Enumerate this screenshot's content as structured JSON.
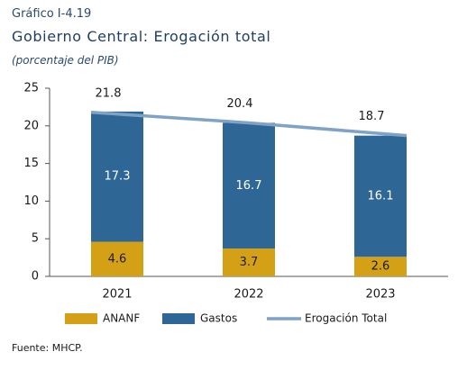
{
  "header": {
    "kicker": "Gráfico I-4.19",
    "title": "Gobierno Central: Erogación total",
    "subtitle": "(porcentaje del PIB)"
  },
  "source": "Fuente: MHCP.",
  "colors": {
    "ananf": "#D4A116",
    "gastos": "#2E6796",
    "total": "#7FA2C6",
    "axis": "#555555"
  },
  "chart_data": {
    "type": "bar",
    "stacked": true,
    "categories": [
      "2021",
      "2022",
      "2023"
    ],
    "series": [
      {
        "name": "ANANF",
        "values": [
          4.6,
          3.7,
          2.6
        ],
        "labels": [
          "4.6",
          "3.7",
          "2.6"
        ]
      },
      {
        "name": "Gastos",
        "values": [
          17.3,
          16.7,
          16.1
        ],
        "labels": [
          "17.3",
          "16.7",
          "16.1"
        ]
      }
    ],
    "line_series": {
      "name": "Erogación Total",
      "values": [
        21.8,
        20.4,
        18.7
      ],
      "labels": [
        "21.8",
        "20.4",
        "18.7"
      ]
    },
    "ylim": [
      0,
      25
    ],
    "yticks": [
      0,
      5,
      10,
      15,
      20,
      25
    ],
    "ytick_labels": [
      "0",
      "5",
      "10",
      "15",
      "20",
      "25"
    ],
    "legend_position": "bottom"
  }
}
